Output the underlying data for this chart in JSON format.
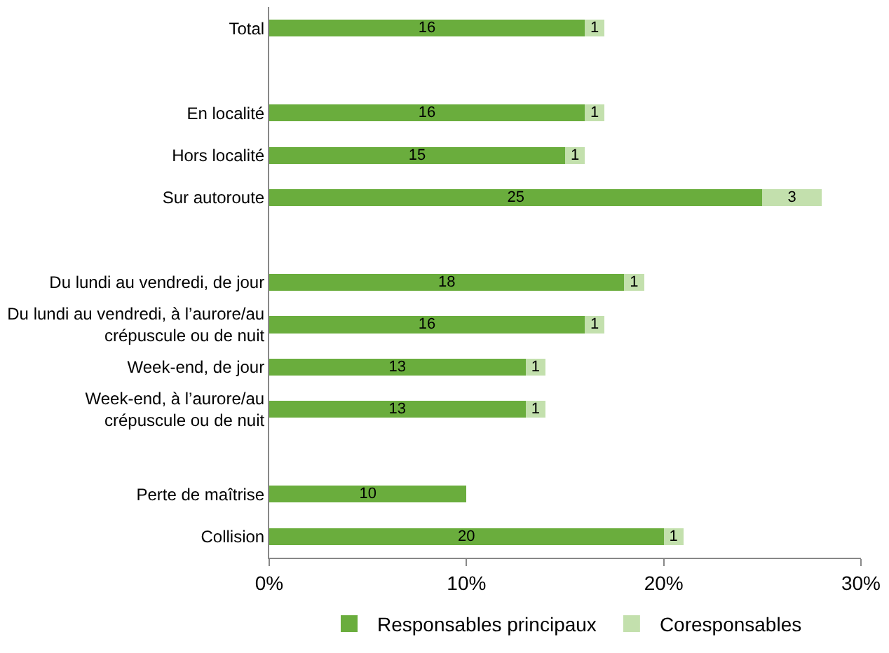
{
  "chart_data": {
    "type": "bar",
    "orientation": "horizontal",
    "stacked": true,
    "data_labels": true,
    "legend": "bottom",
    "categories": [
      "Total",
      null,
      "En localité",
      "Hors localité",
      "Sur autoroute",
      null,
      "Du lundi au vendredi, de jour",
      "Du lundi au vendredi, à l’aurore/au\ncrépuscule ou de nuit",
      "Week-end, de jour",
      "Week-end, à l’aurore/au\ncrépuscule ou de nuit",
      null,
      "Perte de maîtrise",
      "Collision"
    ],
    "series": [
      {
        "name": "Responsables principaux",
        "color": "#6aad3d",
        "values": [
          16,
          null,
          16,
          15,
          25,
          null,
          18,
          16,
          13,
          13,
          null,
          10,
          20
        ]
      },
      {
        "name": "Coresponsables",
        "color": "#c3e0ad",
        "values": [
          1,
          null,
          1,
          1,
          3,
          null,
          1,
          1,
          1,
          1,
          null,
          null,
          1
        ]
      }
    ],
    "xlim": [
      0,
      30
    ],
    "xticks": [
      {
        "value": 0,
        "label": "0%"
      },
      {
        "value": 10,
        "label": "10%"
      },
      {
        "value": 20,
        "label": "20%"
      },
      {
        "value": 30,
        "label": "30%"
      }
    ]
  }
}
